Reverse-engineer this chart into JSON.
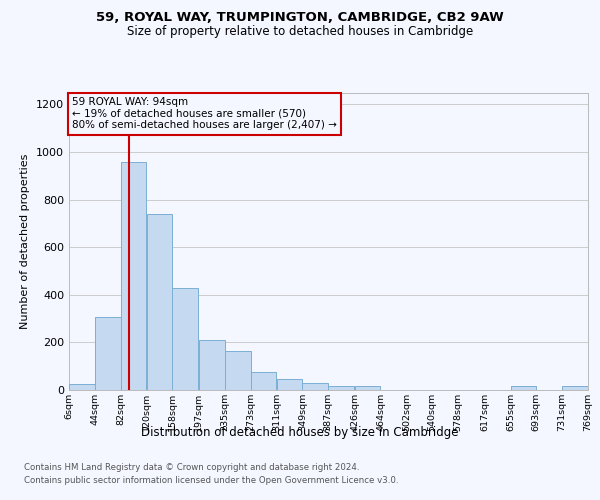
{
  "title1": "59, ROYAL WAY, TRUMPINGTON, CAMBRIDGE, CB2 9AW",
  "title2": "Size of property relative to detached houses in Cambridge",
  "xlabel": "Distribution of detached houses by size in Cambridge",
  "ylabel": "Number of detached properties",
  "bin_starts": [
    6,
    44,
    82,
    120,
    158,
    197,
    235,
    273,
    311,
    349,
    387,
    426,
    464,
    502,
    540,
    578,
    617,
    655,
    693,
    731
  ],
  "bin_width": 38,
  "bar_heights": [
    25,
    305,
    960,
    740,
    430,
    210,
    165,
    75,
    48,
    30,
    15,
    15,
    0,
    0,
    0,
    0,
    0,
    15,
    0,
    15
  ],
  "bar_color": "#c5d9f0",
  "bar_edge_color": "#7aafd4",
  "vline_x": 94,
  "vline_color": "#cc0000",
  "annotation_text": "59 ROYAL WAY: 94sqm\n← 19% of detached houses are smaller (570)\n80% of semi-detached houses are larger (2,407) →",
  "annotation_box_edgecolor": "#cc0000",
  "ylim": [
    0,
    1250
  ],
  "yticks": [
    0,
    200,
    400,
    600,
    800,
    1000,
    1200
  ],
  "tick_labels": [
    "6sqm",
    "44sqm",
    "82sqm",
    "120sqm",
    "158sqm",
    "197sqm",
    "235sqm",
    "273sqm",
    "311sqm",
    "349sqm",
    "387sqm",
    "426sqm",
    "464sqm",
    "502sqm",
    "540sqm",
    "578sqm",
    "617sqm",
    "655sqm",
    "693sqm",
    "731sqm",
    "769sqm"
  ],
  "footer1": "Contains HM Land Registry data © Crown copyright and database right 2024.",
  "footer2": "Contains public sector information licensed under the Open Government Licence v3.0.",
  "bg_color": "#f4f7ff",
  "grid_color": "#cccccc"
}
